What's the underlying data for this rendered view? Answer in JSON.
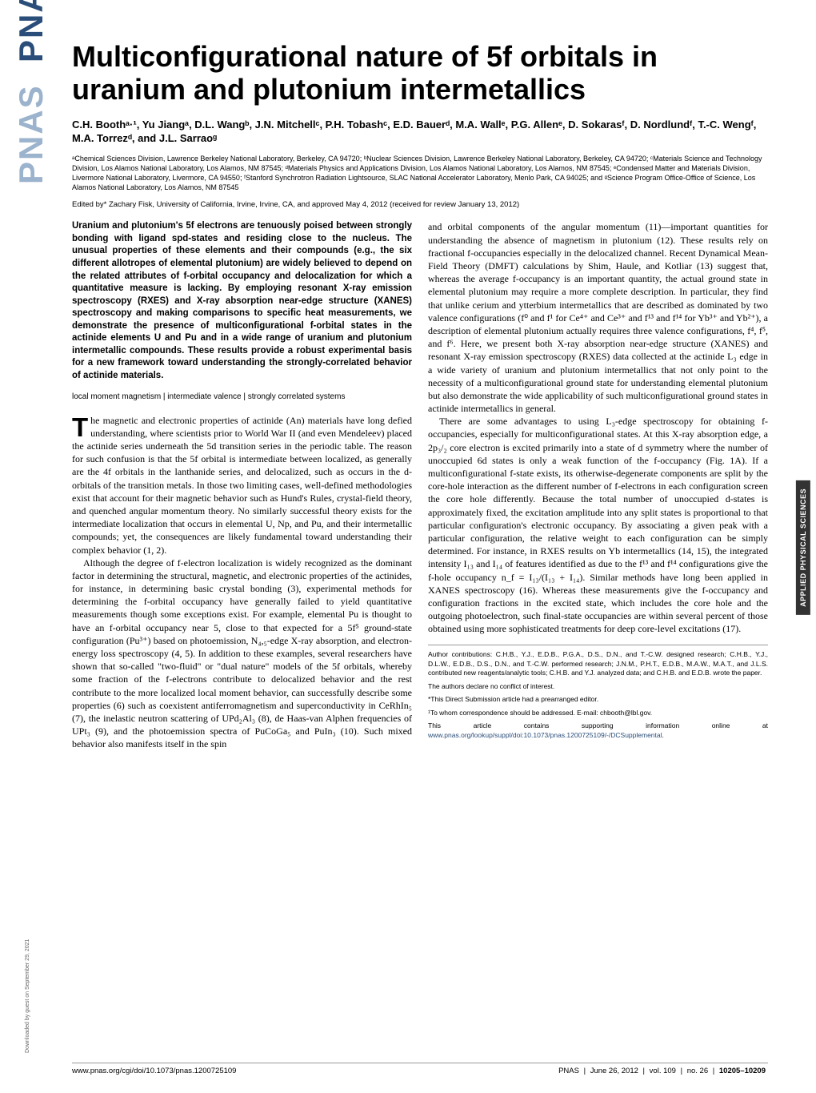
{
  "journal": {
    "side_logo_dark": "PNAS",
    "side_logo_light": "PNAS",
    "section_tab": "APPLIED PHYSICAL SCIENCES"
  },
  "title": "Multiconfigurational nature of 5f orbitals in uranium and plutonium intermetallics",
  "authors": "C.H. Boothᵃ·¹, Yu Jiangᵃ, D.L. Wangᵇ, J.N. Mitchellᶜ, P.H. Tobashᶜ, E.D. Bauerᵈ, M.A. Wallᵉ, P.G. Allenᵉ, D. Sokarasᶠ, D. Nordlundᶠ, T.-C. Wengᶠ, M.A. Torrezᵈ, and J.L. Sarraoᵍ",
  "affiliations": "ᵃChemical Sciences Division, Lawrence Berkeley National Laboratory, Berkeley, CA 94720; ᵇNuclear Sciences Division, Lawrence Berkeley National Laboratory, Berkeley, CA 94720; ᶜMaterials Science and Technology Division, Los Alamos National Laboratory, Los Alamos, NM 87545; ᵈMaterials Physics and Applications Division, Los Alamos National Laboratory, Los Alamos, NM 87545; ᵉCondensed Matter and Materials Division, Livermore National Laboratory, Livermore, CA 94550; ᶠStanford Synchrotron Radiation Lightsource, SLAC National Accelerator Laboratory, Menlo Park, CA 94025; and ᵍScience Program Office-Office of Science, Los Alamos National Laboratory, Los Alamos, NM 87545",
  "edited": "Edited by* Zachary Fisk, University of California, Irvine, Irvine, CA, and approved May 4, 2012 (received for review January 13, 2012)",
  "abstract": "Uranium and plutonium's 5f electrons are tenuously poised between strongly bonding with ligand spd-states and residing close to the nucleus. The unusual properties of these elements and their compounds (e.g., the six different allotropes of elemental plutonium) are widely believed to depend on the related attributes of f-orbital occupancy and delocalization for which a quantitative measure is lacking. By employing resonant X-ray emission spectroscopy (RXES) and X-ray absorption near-edge structure (XANES) spectroscopy and making comparisons to specific heat measurements, we demonstrate the presence of multiconfigurational f-orbital states in the actinide elements U and Pu and in a wide range of uranium and plutonium intermetallic compounds. These results provide a robust experimental basis for a new framework toward understanding the strongly-correlated behavior of actinide materials.",
  "keywords": "local moment magnetism | intermediate valence | strongly correlated systems",
  "body": {
    "left_p1_first_letter": "T",
    "left_p1_rest": "he magnetic and electronic properties of actinide (An) materials have long defied understanding, where scientists prior to World War II (and even Mendeleev) placed the actinide series underneath the 5d transition series in the periodic table. The reason for such confusion is that the 5f orbital is intermediate between localized, as generally are the 4f orbitals in the lanthanide series, and delocalized, such as occurs in the d-orbitals of the transition metals. In those two limiting cases, well-defined methodologies exist that account for their magnetic behavior such as Hund's Rules, crystal-field theory, and quenched angular momentum theory. No similarly successful theory exists for the intermediate localization that occurs in elemental U, Np, and Pu, and their intermetallic compounds; yet, the consequences are likely fundamental toward understanding their complex behavior (1, 2).",
    "left_p2": "Although the degree of f-electron localization is widely recognized as the dominant factor in determining the structural, magnetic, and electronic properties of the actinides, for instance, in determining basic crystal bonding (3), experimental methods for determining the f-orbital occupancy have generally failed to yield quantitative measurements though some exceptions exist. For example, elemental Pu is thought to have an f-orbital occupancy near 5, close to that expected for a 5f⁵ ground-state configuration (Pu³⁺) based on photoemission, N₄,₅-edge X-ray absorption, and electron-energy loss spectroscopy (4, 5). In addition to these examples, several researchers have shown that so-called \"two-fluid\" or \"dual nature\" models of the 5f orbitals, whereby some fraction of the f-electrons contribute to delocalized behavior and the rest contribute to the more localized local moment behavior, can successfully describe some properties (6) such as coexistent antiferromagnetism and superconductivity in CeRhIn₅ (7), the inelastic neutron scattering of UPd₂Al₃ (8), de Haas-van Alphen frequencies of UPt₃ (9), and the photoemission spectra of PuCoGa₅ and PuIn₃ (10). Such mixed behavior also manifests itself in the spin",
    "right_p1": "and orbital components of the angular momentum (11)—important quantities for understanding the absence of magnetism in plutonium (12). These results rely on fractional f-occupancies especially in the delocalized channel. Recent Dynamical Mean-Field Theory (DMFT) calculations by Shim, Haule, and Kotliar (13) suggest that, whereas the average f-occupancy is an important quantity, the actual ground state in elemental plutonium may require a more complete description. In particular, they find that unlike cerium and ytterbium intermetallics that are described as dominated by two valence configurations (f⁰ and f¹ for Ce⁴⁺ and Ce³⁺ and f¹³ and f¹⁴ for Yb³⁺ and Yb²⁺), a description of elemental plutonium actually requires three valence configurations, f⁴, f⁵, and f⁶. Here, we present both X-ray absorption near-edge structure (XANES) and resonant X-ray emission spectroscopy (RXES) data collected at the actinide L₃ edge in a wide variety of uranium and plutonium intermetallics that not only point to the necessity of a multiconfigurational ground state for understanding elemental plutonium but also demonstrate the wide applicability of such multiconfigurational ground states in actinide intermetallics in general.",
    "right_p2": "There are some advantages to using L₃-edge spectroscopy for obtaining f-occupancies, especially for multiconfigurational states. At this X-ray absorption edge, a 2p₃/₂ core electron is excited primarily into a state of d symmetry where the number of unoccupied 6d states is only a weak function of the f-occupancy (Fig. 1A). If a multiconfigurational f-state exists, its otherwise-degenerate components are split by the core-hole interaction as the different number of f-electrons in each configuration screen the core hole differently. Because the total number of unoccupied d-states is approximately fixed, the excitation amplitude into any split states is proportional to that particular configuration's electronic occupancy. By associating a given peak with a particular configuration, the relative weight to each configuration can be simply determined. For instance, in RXES results on Yb intermetallics (14, 15), the integrated intensity I₁₃ and I₁₄ of features identified as due to the f¹³ and f¹⁴ configurations give the f-hole occupancy n_f = I₁₃/(I₁₃ + I₁₄). Similar methods have long been applied in XANES spectroscopy (16). Whereas these measurements give the f-occupancy and configuration fractions in the excited state, which includes the core hole and the outgoing photoelectron, such final-state occupancies are within several percent of those obtained using more sophisticated treatments for deep core-level excitations (17)."
  },
  "footnotes": {
    "f1": "Author contributions: C.H.B., Y.J., E.D.B., P.G.A., D.S., D.N., and T.-C.W. designed research; C.H.B., Y.J., D.L.W., E.D.B., D.S., D.N., and T.-C.W. performed research; J.N.M., P.H.T., E.D.B., M.A.W., M.A.T., and J.L.S. contributed new reagents/analytic tools; C.H.B. and Y.J. analyzed data; and C.H.B. and E.D.B. wrote the paper.",
    "f2": "The authors declare no conflict of interest.",
    "f3": "*This Direct Submission article had a prearranged editor.",
    "f4": "¹To whom correspondence should be addressed. E-mail: chbooth@lbl.gov.",
    "f5_pre": "This article contains supporting information online at ",
    "f5_link": "www.pnas.org/lookup/suppl/doi:10.1073/pnas.1200725109/-/DCSupplemental",
    "f5_post": "."
  },
  "footer": {
    "doi": "www.pnas.org/cgi/doi/10.1073/pnas.1200725109",
    "journal": "PNAS",
    "date": "June 26, 2012",
    "vol": "vol. 109",
    "no": "no. 26",
    "pages": "10205–10209"
  },
  "download_note": "Downloaded by guest on September 29, 2021"
}
